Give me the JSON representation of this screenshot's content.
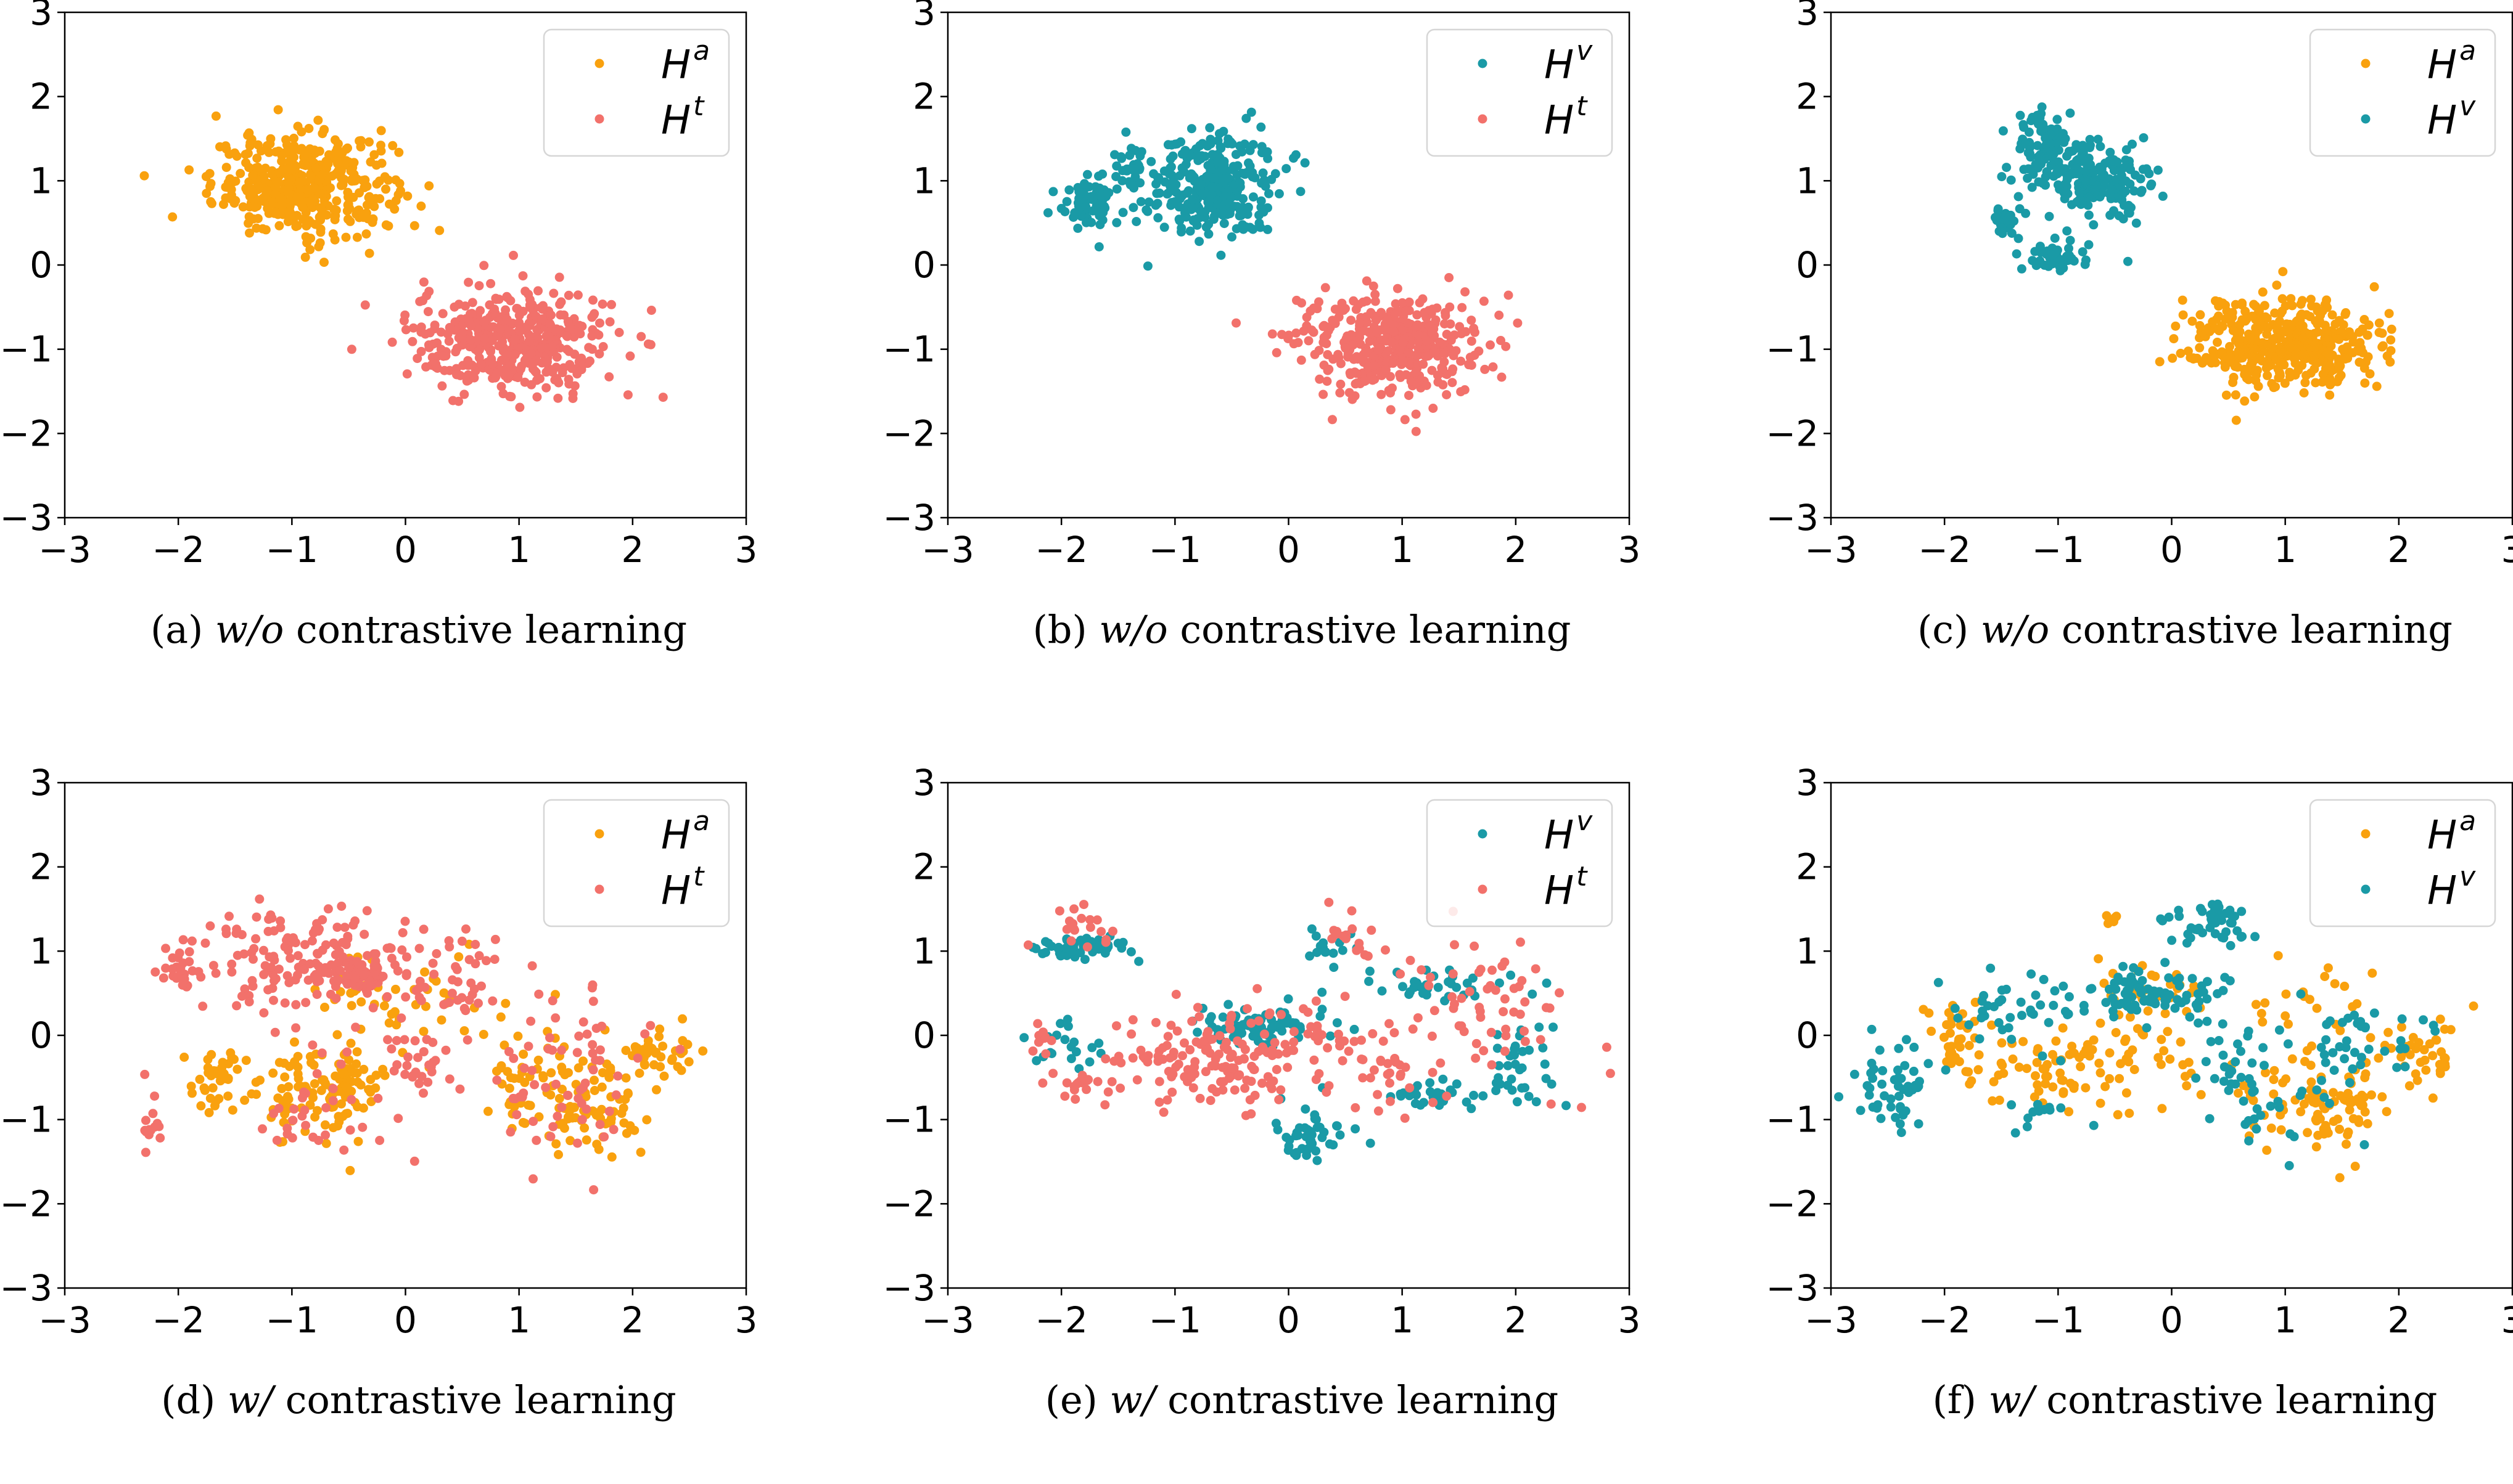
{
  "figure": {
    "colors": {
      "Ha": "#f9a10e",
      "Ht": "#f2716b",
      "Hv": "#1a9aa6"
    }
  },
  "chart_data": [
    {
      "type": "scatter",
      "id": "a",
      "caption": {
        "prefix": "(a) ",
        "italic": "w/o",
        "suffix": " contrastive learning"
      },
      "xlim": [
        -3,
        3
      ],
      "ylim": [
        -3,
        3
      ],
      "xticks": [
        "−3",
        "−2",
        "−1",
        "0",
        "1",
        "2",
        "3"
      ],
      "yticks": [
        "−3",
        "−2",
        "−1",
        "0",
        "1",
        "2",
        "3"
      ],
      "grid": false,
      "legend_position": "top-right",
      "series": [
        {
          "name": "H",
          "sup": "a",
          "key": "Ha",
          "clusters": [
            {
              "cx": -0.9,
              "cy": 0.95,
              "sx": 0.4,
              "sy": 0.3,
              "n": 420
            }
          ]
        },
        {
          "name": "H",
          "sup": "t",
          "key": "Ht",
          "clusters": [
            {
              "cx": 0.95,
              "cy": -0.9,
              "sx": 0.45,
              "sy": 0.32,
              "n": 420
            }
          ]
        }
      ]
    },
    {
      "type": "scatter",
      "id": "b",
      "caption": {
        "prefix": "(b) ",
        "italic": "w/o",
        "suffix": " contrastive learning"
      },
      "xlim": [
        -3,
        3
      ],
      "ylim": [
        -3,
        3
      ],
      "xticks": [
        "−3",
        "−2",
        "−1",
        "0",
        "1",
        "2",
        "3"
      ],
      "yticks": [
        "−3",
        "−2",
        "−1",
        "0",
        "1",
        "2",
        "3"
      ],
      "grid": false,
      "legend_position": "top-right",
      "series": [
        {
          "name": "H",
          "sup": "v",
          "key": "Hv",
          "clusters": [
            {
              "cx": -0.7,
              "cy": 0.95,
              "sx": 0.3,
              "sy": 0.32,
              "n": 320
            },
            {
              "cx": -1.75,
              "cy": 0.75,
              "sx": 0.12,
              "sy": 0.13,
              "n": 70
            },
            {
              "cx": -1.4,
              "cy": 1.2,
              "sx": 0.07,
              "sy": 0.12,
              "n": 25
            }
          ]
        },
        {
          "name": "H",
          "sup": "t",
          "key": "Ht",
          "clusters": [
            {
              "cx": 0.85,
              "cy": -0.95,
              "sx": 0.4,
              "sy": 0.28,
              "n": 420
            }
          ]
        }
      ]
    },
    {
      "type": "scatter",
      "id": "c",
      "caption": {
        "prefix": "(c) ",
        "italic": "w/o",
        "suffix": " contrastive learning"
      },
      "xlim": [
        -3,
        3
      ],
      "ylim": [
        -3,
        3
      ],
      "xticks": [
        "−3",
        "−2",
        "−1",
        "0",
        "1",
        "2",
        "3"
      ],
      "yticks": [
        "−3",
        "−2",
        "−1",
        "0",
        "1",
        "2",
        "3"
      ],
      "grid": false,
      "legend_position": "top-right",
      "series": [
        {
          "name": "H",
          "sup": "a",
          "key": "Ha",
          "clusters": [
            {
              "cx": 1.0,
              "cy": -0.95,
              "sx": 0.42,
              "sy": 0.27,
              "n": 450
            }
          ]
        },
        {
          "name": "H",
          "sup": "v",
          "key": "Hv",
          "clusters": [
            {
              "cx": -0.7,
              "cy": 1.0,
              "sx": 0.25,
              "sy": 0.22,
              "n": 180
            },
            {
              "cx": -1.15,
              "cy": 1.4,
              "sx": 0.15,
              "sy": 0.2,
              "n": 90
            },
            {
              "cx": -1.45,
              "cy": 0.5,
              "sx": 0.05,
              "sy": 0.12,
              "n": 25
            },
            {
              "cx": -1.0,
              "cy": 0.08,
              "sx": 0.15,
              "sy": 0.09,
              "n": 50
            }
          ]
        }
      ]
    },
    {
      "type": "scatter",
      "id": "d",
      "caption": {
        "prefix": "(d) ",
        "italic": "w/",
        "suffix": " contrastive learning"
      },
      "xlim": [
        -3,
        3
      ],
      "ylim": [
        -3,
        3
      ],
      "xticks": [
        "−3",
        "−2",
        "−1",
        "0",
        "1",
        "2",
        "3"
      ],
      "yticks": [
        "−3",
        "−2",
        "−1",
        "0",
        "1",
        "2",
        "3"
      ],
      "grid": false,
      "legend_position": "top-right",
      "series": [
        {
          "name": "H",
          "sup": "a",
          "key": "Ha",
          "clusters": [
            {
              "cx": -1.7,
              "cy": -0.55,
              "sx": 0.15,
              "sy": 0.2,
              "n": 40
            },
            {
              "cx": -0.9,
              "cy": -0.7,
              "sx": 0.25,
              "sy": 0.3,
              "n": 60
            },
            {
              "cx": -0.5,
              "cy": -0.6,
              "sx": 0.12,
              "sy": 0.3,
              "n": 60
            },
            {
              "cx": -0.4,
              "cy": 0.55,
              "sx": 0.2,
              "sy": 0.15,
              "n": 25
            },
            {
              "cx": 1.2,
              "cy": -0.6,
              "sx": 0.25,
              "sy": 0.35,
              "n": 60
            },
            {
              "cx": 1.7,
              "cy": -0.9,
              "sx": 0.2,
              "sy": 0.25,
              "n": 60
            },
            {
              "cx": 2.2,
              "cy": -0.25,
              "sx": 0.18,
              "sy": 0.2,
              "n": 40
            },
            {
              "cx": 0.3,
              "cy": 0.2,
              "sx": 0.5,
              "sy": 0.4,
              "n": 30
            }
          ]
        },
        {
          "name": "H",
          "sup": "t",
          "key": "Ht",
          "clusters": [
            {
              "cx": -0.9,
              "cy": 0.9,
              "sx": 0.45,
              "sy": 0.3,
              "n": 150
            },
            {
              "cx": -0.4,
              "cy": 0.7,
              "sx": 0.12,
              "sy": 0.1,
              "n": 60
            },
            {
              "cx": -2.0,
              "cy": 0.75,
              "sx": 0.1,
              "sy": 0.12,
              "n": 25
            },
            {
              "cx": -2.25,
              "cy": -1.1,
              "sx": 0.05,
              "sy": 0.2,
              "n": 14
            },
            {
              "cx": 0.35,
              "cy": 0.8,
              "sx": 0.25,
              "sy": 0.35,
              "n": 40
            },
            {
              "cx": 0.1,
              "cy": -0.3,
              "sx": 0.15,
              "sy": 0.25,
              "n": 25
            },
            {
              "cx": 1.3,
              "cy": -0.5,
              "sx": 0.4,
              "sy": 0.5,
              "n": 70
            },
            {
              "cx": -0.6,
              "cy": -0.8,
              "sx": 0.5,
              "sy": 0.4,
              "n": 40
            }
          ]
        }
      ]
    },
    {
      "type": "scatter",
      "id": "e",
      "caption": {
        "prefix": "(e) ",
        "italic": "w/",
        "suffix": " contrastive learning"
      },
      "xlim": [
        -3,
        3
      ],
      "ylim": [
        -3,
        3
      ],
      "xticks": [
        "−3",
        "−2",
        "−1",
        "0",
        "1",
        "2",
        "3"
      ],
      "yticks": [
        "−3",
        "−2",
        "−1",
        "0",
        "1",
        "2",
        "3"
      ],
      "grid": false,
      "legend_position": "top-right",
      "series": [
        {
          "name": "H",
          "sup": "v",
          "key": "Hv",
          "clusters": [
            {
              "cx": -1.8,
              "cy": 1.05,
              "sx": 0.2,
              "sy": 0.08,
              "n": 50
            },
            {
              "cx": -0.3,
              "cy": 0.12,
              "sx": 0.3,
              "sy": 0.12,
              "n": 80
            },
            {
              "cx": 0.2,
              "cy": -1.2,
              "sx": 0.2,
              "sy": 0.18,
              "n": 45
            },
            {
              "cx": 1.3,
              "cy": 0.6,
              "sx": 0.35,
              "sy": 0.1,
              "n": 35
            },
            {
              "cx": 1.3,
              "cy": -0.7,
              "sx": 0.35,
              "sy": 0.1,
              "n": 35
            },
            {
              "cx": 2.0,
              "cy": -0.3,
              "sx": 0.15,
              "sy": 0.25,
              "n": 30
            },
            {
              "cx": -2.0,
              "cy": -0.1,
              "sx": 0.2,
              "sy": 0.2,
              "n": 20
            },
            {
              "cx": 0.4,
              "cy": 1.0,
              "sx": 0.12,
              "sy": 0.15,
              "n": 15
            }
          ]
        },
        {
          "name": "H",
          "sup": "t",
          "key": "Ht",
          "clusters": [
            {
              "cx": -0.6,
              "cy": -0.25,
              "sx": 0.45,
              "sy": 0.3,
              "n": 160
            },
            {
              "cx": -1.8,
              "cy": 1.35,
              "sx": 0.2,
              "sy": 0.12,
              "n": 20
            },
            {
              "cx": -1.8,
              "cy": -0.6,
              "sx": 0.2,
              "sy": 0.1,
              "n": 20
            },
            {
              "cx": 1.6,
              "cy": 0.3,
              "sx": 0.5,
              "sy": 0.5,
              "n": 70
            },
            {
              "cx": 0.6,
              "cy": -0.4,
              "sx": 0.3,
              "sy": 0.35,
              "n": 40
            },
            {
              "cx": 0.5,
              "cy": 1.2,
              "sx": 0.1,
              "sy": 0.12,
              "n": 12
            },
            {
              "cx": -2.2,
              "cy": 0.0,
              "sx": 0.1,
              "sy": 0.15,
              "n": 10
            }
          ]
        }
      ]
    },
    {
      "type": "scatter",
      "id": "f",
      "caption": {
        "prefix": "(f) ",
        "italic": "w/",
        "suffix": " contrastive learning"
      },
      "xlim": [
        -3,
        3
      ],
      "ylim": [
        -3,
        3
      ],
      "xticks": [
        "−3",
        "−2",
        "−1",
        "0",
        "1",
        "2",
        "3"
      ],
      "yticks": [
        "−3",
        "−2",
        "−1",
        "0",
        "1",
        "2",
        "3"
      ],
      "grid": false,
      "legend_position": "top-right",
      "series": [
        {
          "name": "H",
          "sup": "a",
          "key": "Ha",
          "clusters": [
            {
              "cx": -1.9,
              "cy": 0.0,
              "sx": 0.15,
              "sy": 0.25,
              "n": 40
            },
            {
              "cx": -1.2,
              "cy": -0.4,
              "sx": 0.3,
              "sy": 0.25,
              "n": 50
            },
            {
              "cx": -0.4,
              "cy": -0.3,
              "sx": 0.35,
              "sy": 0.35,
              "n": 50
            },
            {
              "cx": -0.2,
              "cy": 0.55,
              "sx": 0.2,
              "sy": 0.1,
              "n": 30
            },
            {
              "cx": 1.0,
              "cy": -0.6,
              "sx": 0.25,
              "sy": 0.3,
              "n": 40
            },
            {
              "cx": 1.5,
              "cy": -0.8,
              "sx": 0.2,
              "sy": 0.25,
              "n": 60
            },
            {
              "cx": 2.15,
              "cy": -0.2,
              "sx": 0.18,
              "sy": 0.2,
              "n": 40
            },
            {
              "cx": -0.5,
              "cy": 1.38,
              "sx": 0.05,
              "sy": 0.03,
              "n": 6
            },
            {
              "cx": 1.2,
              "cy": 0.6,
              "sx": 0.3,
              "sy": 0.4,
              "n": 20
            }
          ]
        },
        {
          "name": "H",
          "sup": "v",
          "key": "Hv",
          "clusters": [
            {
              "cx": -2.45,
              "cy": -0.6,
              "sx": 0.18,
              "sy": 0.25,
              "n": 50
            },
            {
              "cx": -1.4,
              "cy": 0.3,
              "sx": 0.35,
              "sy": 0.25,
              "n": 40
            },
            {
              "cx": -0.2,
              "cy": 0.5,
              "sx": 0.3,
              "sy": 0.15,
              "n": 90
            },
            {
              "cx": 0.35,
              "cy": 1.3,
              "sx": 0.2,
              "sy": 0.15,
              "n": 45
            },
            {
              "cx": 0.5,
              "cy": -0.3,
              "sx": 0.2,
              "sy": 0.3,
              "n": 25
            },
            {
              "cx": 1.5,
              "cy": -0.1,
              "sx": 0.3,
              "sy": 0.3,
              "n": 45
            },
            {
              "cx": 0.9,
              "cy": -1.0,
              "sx": 0.25,
              "sy": 0.2,
              "n": 20
            },
            {
              "cx": -1.3,
              "cy": -0.9,
              "sx": 0.3,
              "sy": 0.1,
              "n": 12
            }
          ]
        }
      ]
    }
  ]
}
